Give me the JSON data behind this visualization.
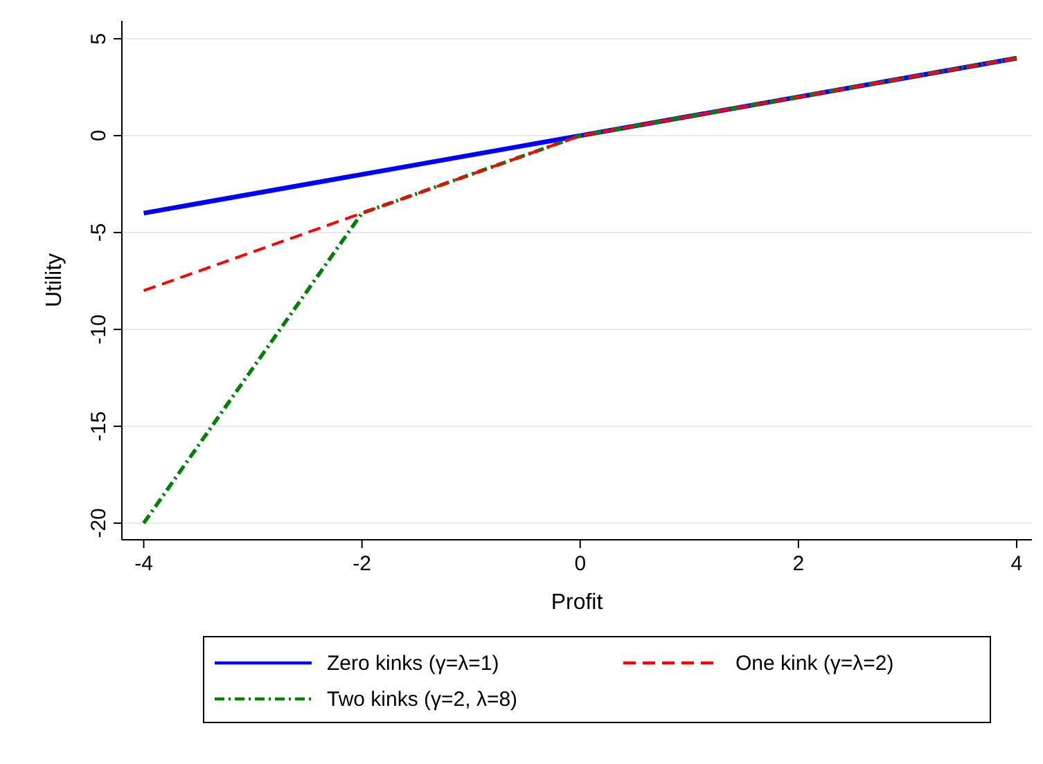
{
  "chart_data": {
    "type": "line",
    "xlabel": "Profit",
    "ylabel": "Utility",
    "xlim": [
      -4.2,
      4.14
    ],
    "ylim": [
      -20.86,
      5.93
    ],
    "xticks": [
      {
        "value": -4,
        "label": "-4"
      },
      {
        "value": -2,
        "label": "-2"
      },
      0,
      2,
      4
    ],
    "yticks": [
      {
        "value": -20,
        "label": "-20"
      },
      {
        "value": -15,
        "label": "-15"
      },
      {
        "value": -10,
        "label": "-10"
      },
      {
        "value": -5,
        "label": "-5"
      },
      0,
      5
    ],
    "grid": "y",
    "legend": "bottom",
    "marker": "none",
    "series": [
      {
        "name": "Zero kinks (γ=λ=1)",
        "color": "#0000ff",
        "line_style": "solid",
        "x": [
          -4,
          0,
          4
        ],
        "values": [
          -4,
          0,
          4
        ]
      },
      {
        "name": "One kink (γ=λ=2)",
        "color": "#ff0000",
        "line_style": "dashed",
        "x": [
          -4,
          -2,
          0,
          4
        ],
        "values": [
          -8,
          -4,
          0,
          4
        ]
      },
      {
        "name": "Two kinks (γ=2, λ=8)",
        "color": "#008000",
        "line_style": "dotted",
        "x": [
          -4,
          -2,
          0,
          4
        ],
        "values": [
          -20,
          -4,
          0,
          4
        ]
      }
    ]
  }
}
